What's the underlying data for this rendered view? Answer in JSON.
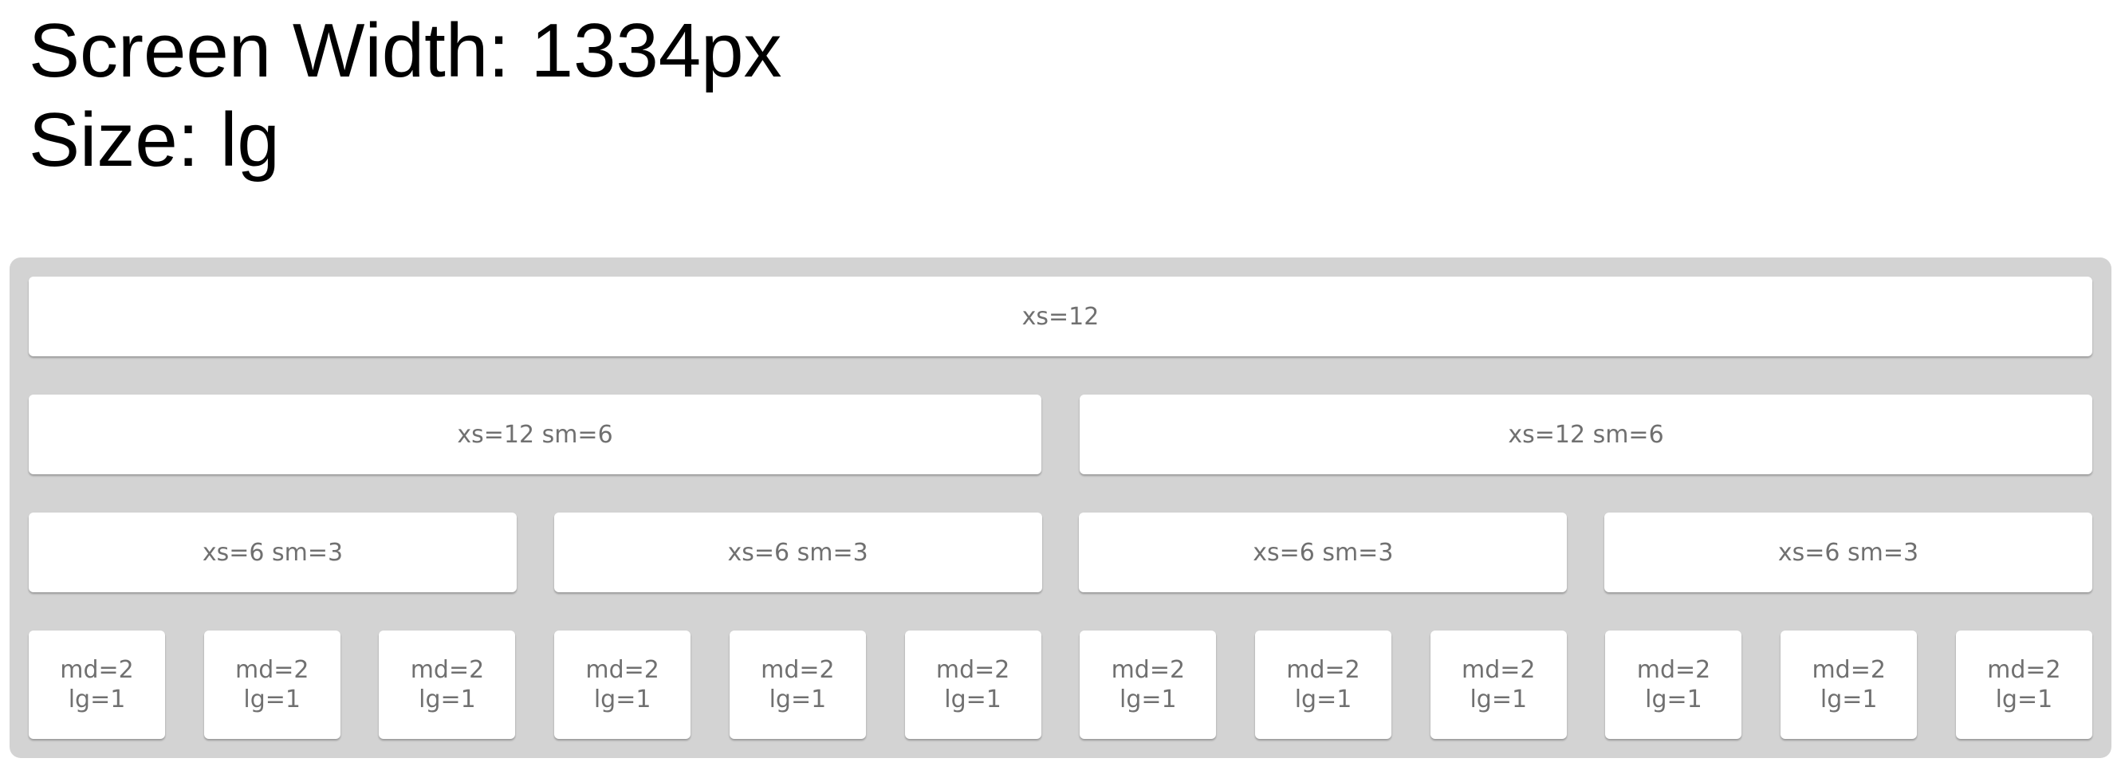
{
  "header": {
    "screen_width_text": "Screen Width: 1334px",
    "size_text": "Size: lg"
  },
  "grid": {
    "row1": [
      {
        "label": "xs=12"
      }
    ],
    "row2": [
      {
        "label": "xs=12 sm=6"
      },
      {
        "label": "xs=12 sm=6"
      }
    ],
    "row3": [
      {
        "label": "xs=6 sm=3"
      },
      {
        "label": "xs=6 sm=3"
      },
      {
        "label": "xs=6 sm=3"
      },
      {
        "label": "xs=6 sm=3"
      }
    ],
    "row4": [
      {
        "line1": "md=2",
        "line2": "lg=1"
      },
      {
        "line1": "md=2",
        "line2": "lg=1"
      },
      {
        "line1": "md=2",
        "line2": "lg=1"
      },
      {
        "line1": "md=2",
        "line2": "lg=1"
      },
      {
        "line1": "md=2",
        "line2": "lg=1"
      },
      {
        "line1": "md=2",
        "line2": "lg=1"
      },
      {
        "line1": "md=2",
        "line2": "lg=1"
      },
      {
        "line1": "md=2",
        "line2": "lg=1"
      },
      {
        "line1": "md=2",
        "line2": "lg=1"
      },
      {
        "line1": "md=2",
        "line2": "lg=1"
      },
      {
        "line1": "md=2",
        "line2": "lg=1"
      },
      {
        "line1": "md=2",
        "line2": "lg=1"
      }
    ]
  },
  "colors": {
    "container_background": "#d3d3d3",
    "cell_background": "#ffffff",
    "cell_text": "#707070",
    "heading_text": "#000000"
  }
}
